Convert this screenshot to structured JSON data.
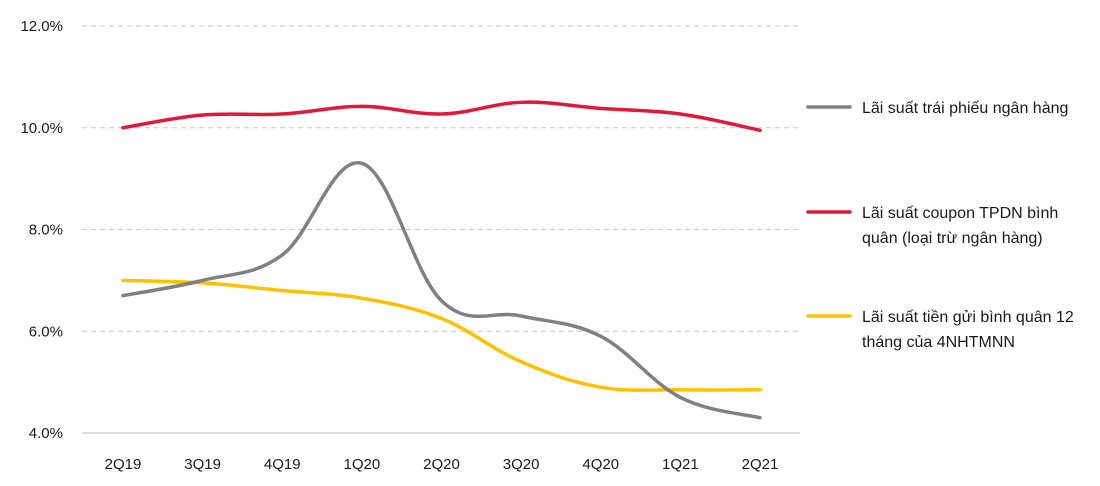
{
  "chart_data": {
    "type": "line",
    "categories": [
      "2Q19",
      "3Q19",
      "4Q19",
      "1Q20",
      "2Q20",
      "3Q20",
      "4Q20",
      "1Q21",
      "2Q21"
    ],
    "yticks": [
      "4.0%",
      "6.0%",
      "8.0%",
      "10.0%",
      "12.0%"
    ],
    "ylim": [
      4.0,
      12.0
    ],
    "grid": true,
    "legend_position": "right",
    "series": [
      {
        "name": "Lãi suất trái phiếu ngân hàng",
        "legend_lines": [
          "Lãi suất trái phiếu ngân hàng"
        ],
        "color": "#808080",
        "values": [
          6.7,
          7.0,
          7.5,
          9.3,
          6.6,
          6.3,
          5.9,
          4.7,
          4.3
        ]
      },
      {
        "name": "Lãi suất coupon TPDN bình quân (loại trừ ngân hàng)",
        "legend_lines": [
          "Lãi suất coupon TPDN bình",
          "quân (loại trừ ngân hàng)"
        ],
        "color": "#e0193a",
        "values": [
          10.0,
          10.25,
          10.27,
          10.42,
          10.27,
          10.5,
          10.38,
          10.27,
          9.95
        ]
      },
      {
        "name": "Lãi suất tiền gửi bình quân 12 tháng của 4NHTMNN",
        "legend_lines": [
          "Lãi suất tiền gửi bình quân 12",
          "tháng của 4NHTMNN"
        ],
        "color": "#ffc000",
        "values": [
          7.0,
          6.95,
          6.8,
          6.65,
          6.25,
          5.4,
          4.9,
          4.85,
          4.85
        ]
      }
    ]
  }
}
